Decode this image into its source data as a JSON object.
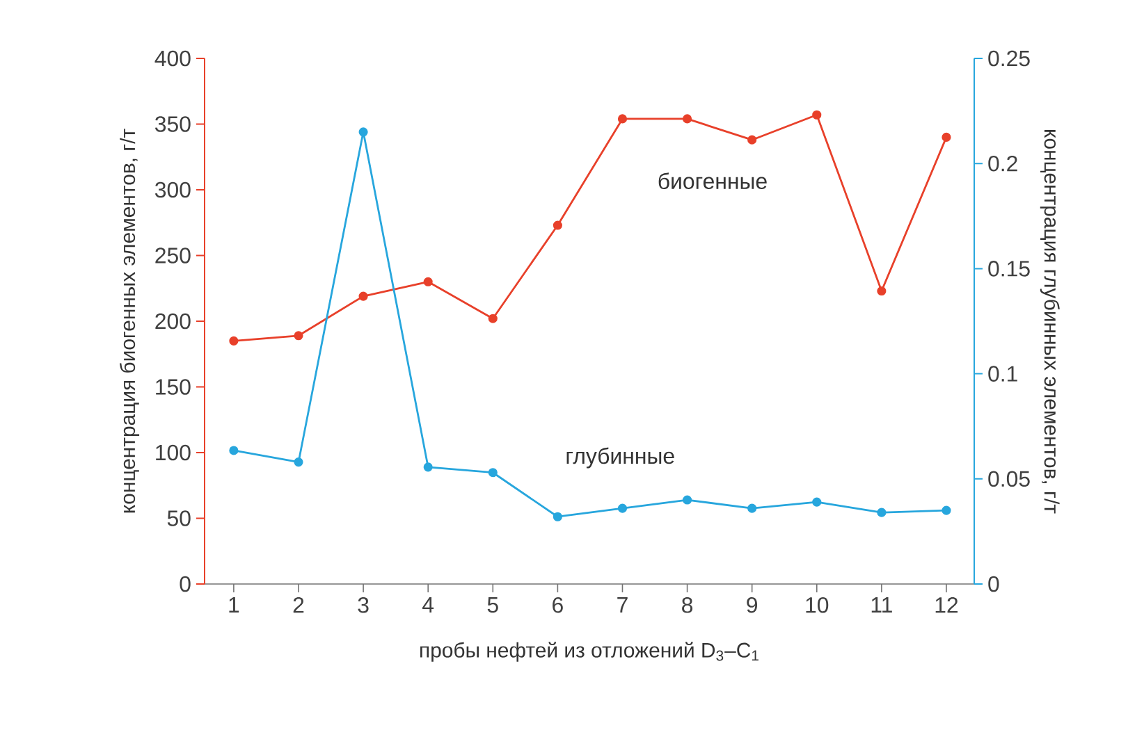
{
  "chart_data": {
    "type": "line",
    "categories": [
      "1",
      "2",
      "3",
      "4",
      "5",
      "6",
      "7",
      "8",
      "9",
      "10",
      "11",
      "12"
    ],
    "xlabel": "пробы нефтей из отложений D$_{3}$–C$_{1}$",
    "ylabel": "концентрация биогенных элементов, г/т",
    "y2label": "концентрация глубинных элементов, г/т",
    "ylim": [
      0,
      400
    ],
    "yticks": [
      0,
      50,
      100,
      150,
      200,
      250,
      300,
      350,
      400
    ],
    "y2lim": [
      0,
      0.25
    ],
    "y2ticks": [
      0,
      0.05,
      0.1,
      0.15,
      0.2,
      0.25
    ],
    "marker": "circle",
    "line_style": "solid",
    "series": [
      {
        "name": "биогенные",
        "color": "#e8402a",
        "axis": "y",
        "values": [
          185,
          189,
          219,
          230,
          202,
          273,
          354,
          354,
          338,
          357,
          223,
          340
        ]
      },
      {
        "name": "глубинные",
        "color": "#27a6dd",
        "axis": "y2",
        "values": [
          0.0635,
          0.058,
          0.215,
          0.0556,
          0.053,
          0.032,
          0.036,
          0.04,
          0.036,
          0.039,
          0.034,
          0.035
        ]
      }
    ]
  }
}
